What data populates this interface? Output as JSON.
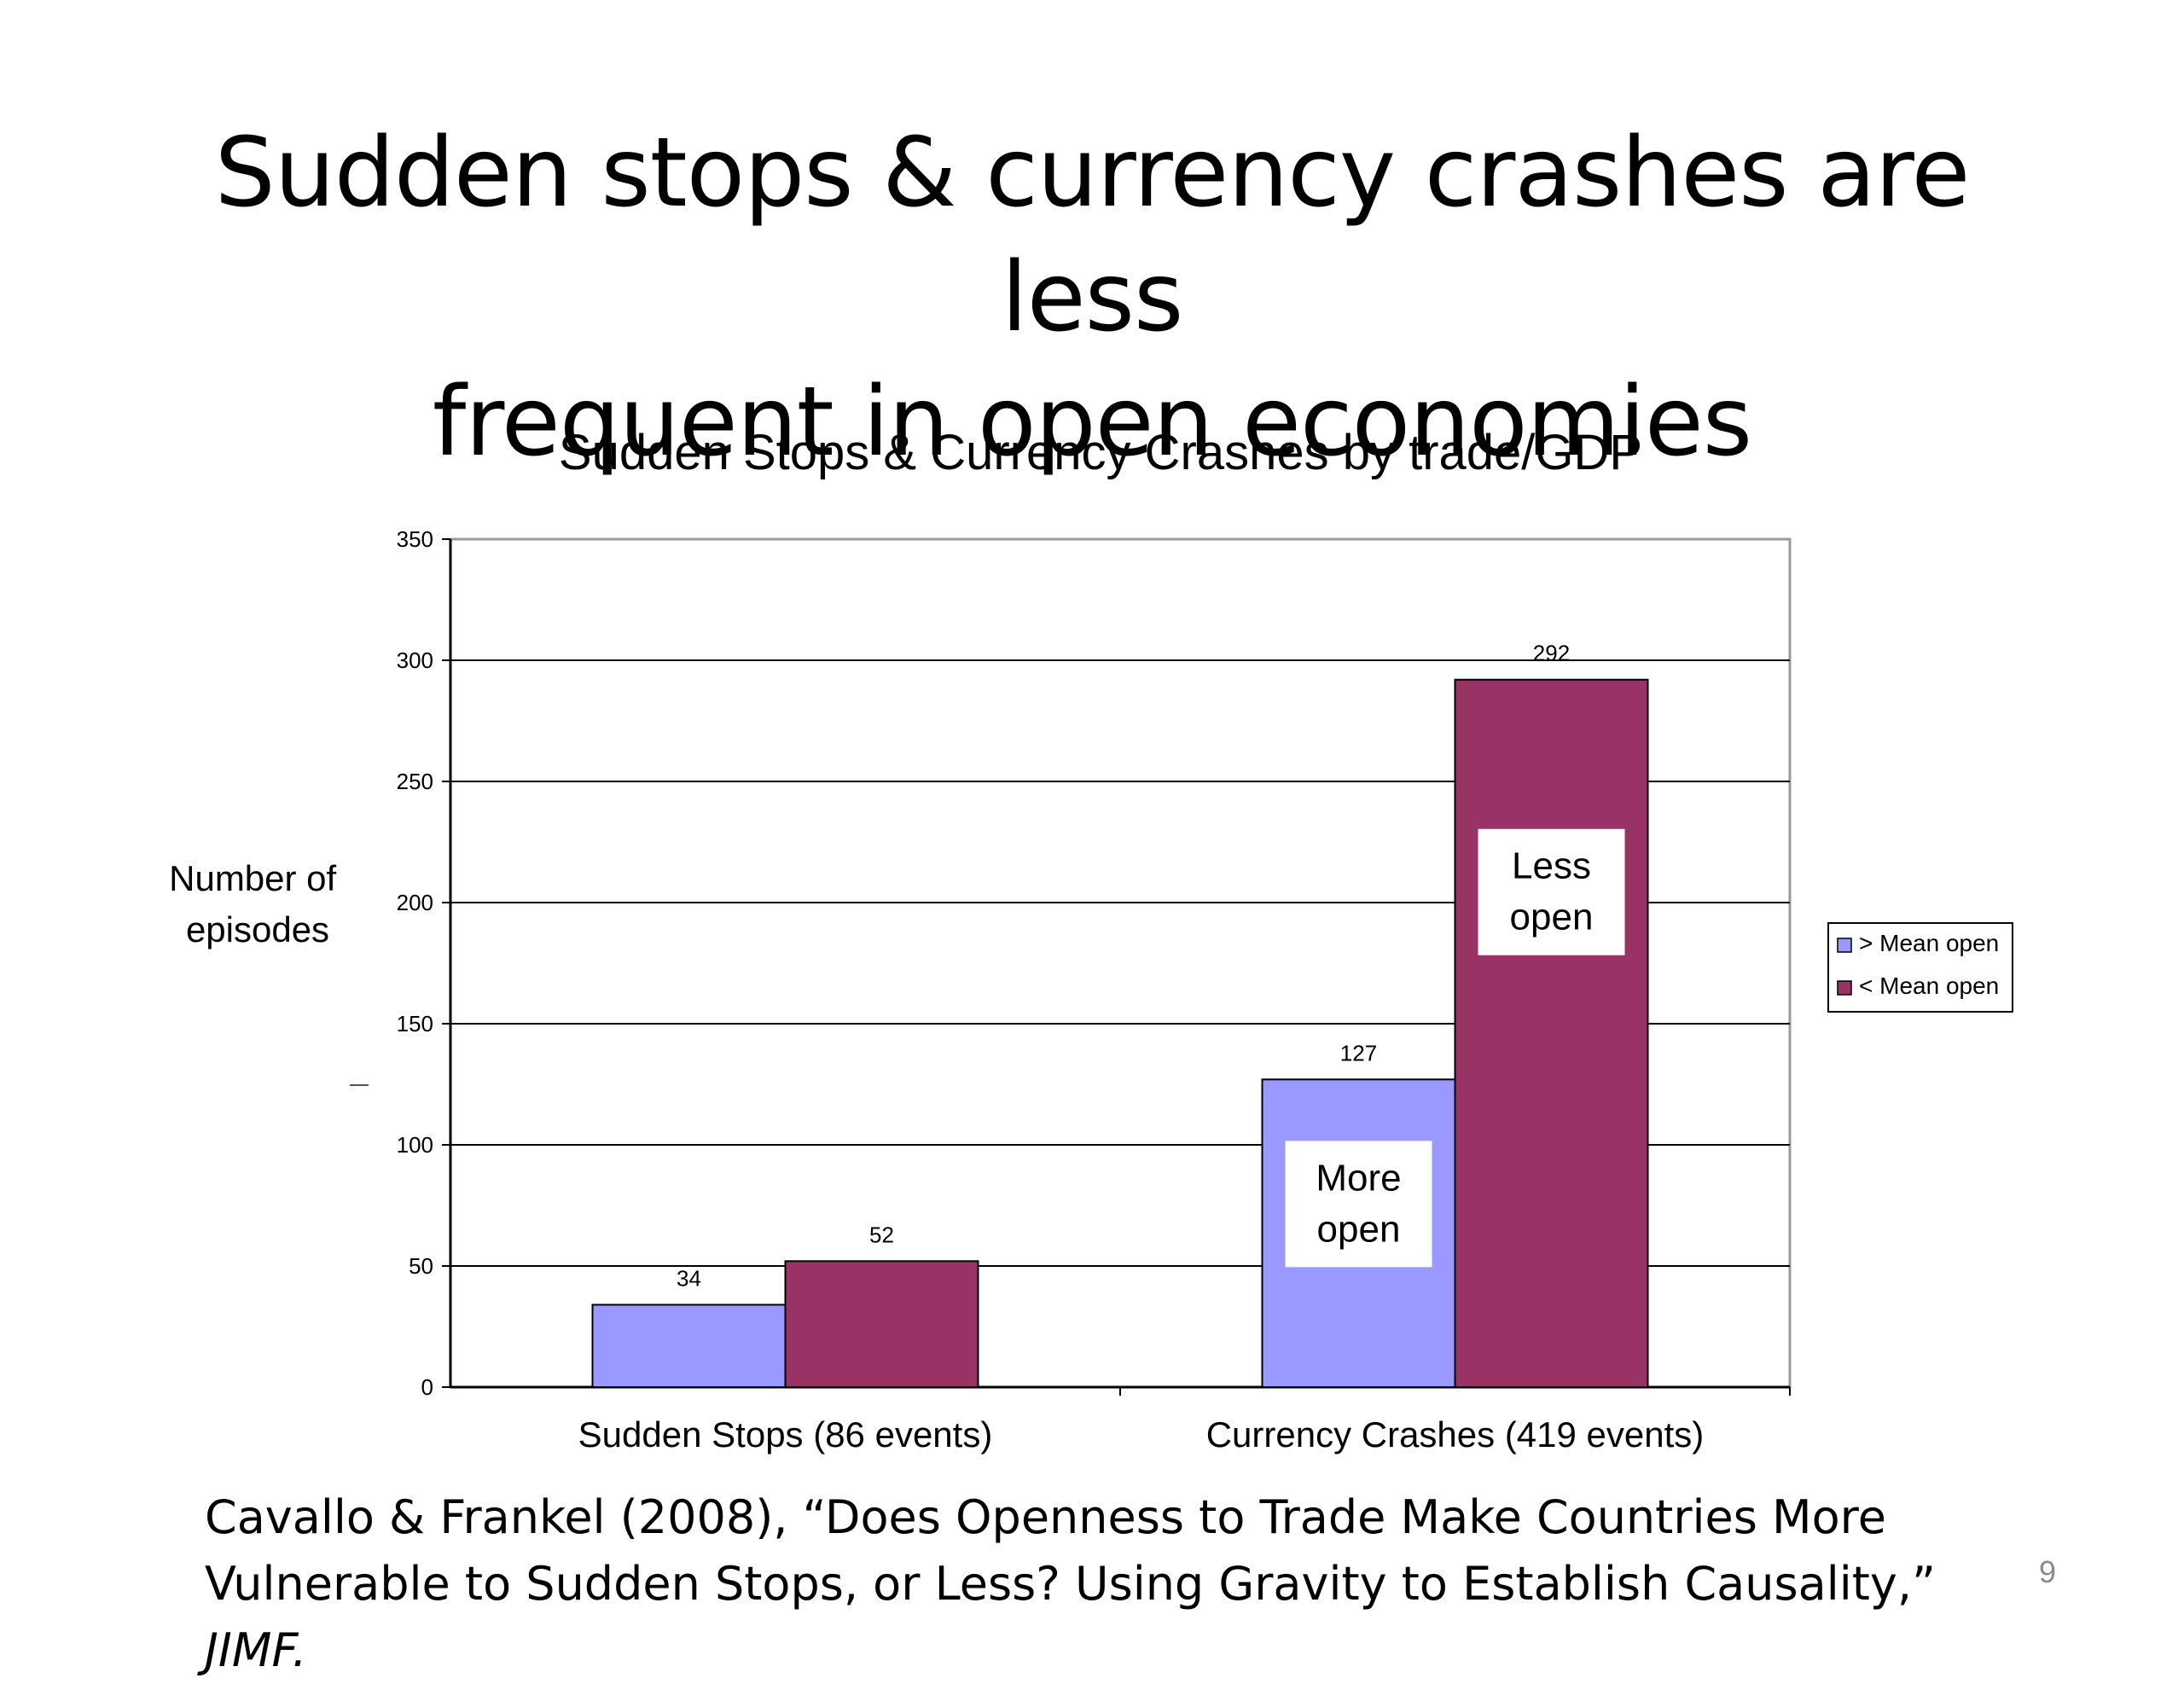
{
  "slide": {
    "title_lines": [
      "Sudden stops & currency crashes are less",
      "frequent in open economies"
    ],
    "page_number": "9",
    "citation_line1": "Cavallo & Frankel (2008), “Does Openness to Trade Make Countries More",
    "citation_line2": "Vulnerable to Sudden Stops, or Less? Using Gravity to Establish Causality,”",
    "citation_journal": "JIMF."
  },
  "chart_data": {
    "type": "bar",
    "title": "Sudden Stops & Currency Crashes by trade/GDP",
    "ylabel_lines": [
      "Number of",
      "episodes"
    ],
    "categories": [
      "Sudden Stops (86 events)",
      "Currency Crashes (419 events)"
    ],
    "series": [
      {
        "name": "> Mean open",
        "values": [
          34,
          127
        ],
        "color": "#9999ff"
      },
      {
        "name": "< Mean open",
        "values": [
          52,
          292
        ],
        "color": "#993366"
      }
    ],
    "ylim": [
      0,
      350
    ],
    "yticks": [
      0,
      50,
      100,
      150,
      200,
      250,
      300,
      350
    ],
    "grid": true,
    "legend_position": "right",
    "annotations": [
      {
        "lines": [
          "Less",
          "open"
        ],
        "category": 1,
        "series": 1
      },
      {
        "lines": [
          "More",
          "open"
        ],
        "category": 1,
        "series": 0
      }
    ]
  }
}
